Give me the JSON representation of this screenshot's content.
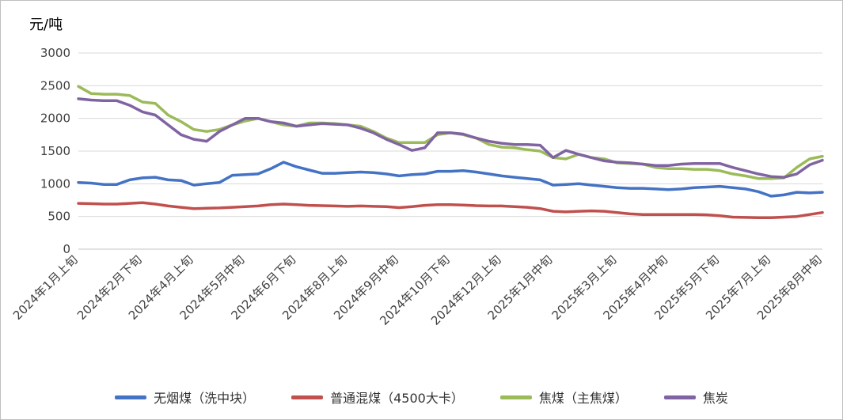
{
  "chart_data": {
    "type": "line",
    "title": "",
    "xlabel": "",
    "ylabel": "元/吨",
    "ylim": [
      0,
      3000
    ],
    "ytick_step": 500,
    "grid": true,
    "legend_position": "bottom",
    "tick_indices": [
      0,
      5,
      9,
      13,
      17,
      21,
      25,
      29,
      33,
      37,
      42,
      46,
      50,
      54,
      58
    ],
    "categories": [
      "2024年1月上旬",
      "2024年1月中旬",
      "2024年1月下旬",
      "2024年2月上旬",
      "2024年2月中旬",
      "2024年2月下旬",
      "2024年3月上旬",
      "2024年3月中旬",
      "2024年3月下旬",
      "2024年4月上旬",
      "2024年4月中旬",
      "2024年4月下旬",
      "2024年5月上旬",
      "2024年5月中旬",
      "2024年5月下旬",
      "2024年6月上旬",
      "2024年6月中旬",
      "2024年6月下旬",
      "2024年7月上旬",
      "2024年7月中旬",
      "2024年7月下旬",
      "2024年8月上旬",
      "2024年8月中旬",
      "2024年8月下旬",
      "2024年9月上旬",
      "2024年9月中旬",
      "2024年9月下旬",
      "2024年10月上旬",
      "2024年10月中旬",
      "2024年10月下旬",
      "2024年11月上旬",
      "2024年11月中旬",
      "2024年11月下旬",
      "2024年12月上旬",
      "2024年12月中旬",
      "2024年12月下旬",
      "2025年1月上旬",
      "2025年1月中旬",
      "2025年1月下旬",
      "2025年2月上旬",
      "2025年2月中旬",
      "2025年2月下旬",
      "2025年3月上旬",
      "2025年3月中旬",
      "2025年3月下旬",
      "2025年4月上旬",
      "2025年4月中旬",
      "2025年4月下旬",
      "2025年5月上旬",
      "2025年5月中旬",
      "2025年5月下旬",
      "2025年6月上旬",
      "2025年6月中旬",
      "2025年6月下旬",
      "2025年7月上旬",
      "2025年7月中旬",
      "2025年7月下旬",
      "2025年8月上旬",
      "2025年8月中旬"
    ],
    "series": [
      {
        "name": "无烟煤（洗中块）",
        "color": "#4472C4",
        "values": [
          1020,
          1010,
          990,
          990,
          1060,
          1090,
          1100,
          1060,
          1050,
          980,
          1000,
          1020,
          1130,
          1140,
          1150,
          1230,
          1330,
          1260,
          1210,
          1160,
          1160,
          1170,
          1180,
          1170,
          1150,
          1120,
          1140,
          1150,
          1190,
          1190,
          1200,
          1180,
          1150,
          1120,
          1100,
          1080,
          1060,
          980,
          990,
          1000,
          980,
          960,
          940,
          930,
          930,
          920,
          910,
          920,
          940,
          950,
          960,
          940,
          920,
          880,
          810,
          830,
          870,
          860,
          870
        ]
      },
      {
        "name": "普通混煤（4500大卡）",
        "color": "#C0504D",
        "values": [
          700,
          695,
          690,
          690,
          700,
          710,
          690,
          660,
          640,
          620,
          625,
          630,
          640,
          650,
          660,
          680,
          690,
          680,
          670,
          665,
          660,
          655,
          660,
          655,
          650,
          635,
          650,
          670,
          680,
          680,
          675,
          665,
          660,
          660,
          650,
          640,
          620,
          580,
          570,
          580,
          585,
          580,
          560,
          540,
          530,
          530,
          530,
          530,
          530,
          525,
          510,
          490,
          485,
          480,
          480,
          490,
          500,
          530,
          560
        ]
      },
      {
        "name": "焦煤（主焦煤）",
        "color": "#9BBB59",
        "values": [
          2490,
          2380,
          2370,
          2370,
          2350,
          2250,
          2230,
          2050,
          1950,
          1830,
          1800,
          1830,
          1900,
          1960,
          2000,
          1950,
          1900,
          1880,
          1930,
          1930,
          1920,
          1900,
          1880,
          1800,
          1700,
          1630,
          1630,
          1630,
          1750,
          1780,
          1750,
          1700,
          1600,
          1560,
          1550,
          1520,
          1500,
          1400,
          1380,
          1450,
          1400,
          1380,
          1320,
          1310,
          1300,
          1250,
          1230,
          1230,
          1220,
          1220,
          1200,
          1150,
          1120,
          1080,
          1080,
          1090,
          1250,
          1380,
          1420
        ]
      },
      {
        "name": "焦炭",
        "color": "#8064A2",
        "values": [
          2300,
          2280,
          2270,
          2270,
          2200,
          2100,
          2050,
          1900,
          1750,
          1680,
          1650,
          1800,
          1900,
          2000,
          2000,
          1950,
          1930,
          1880,
          1900,
          1920,
          1910,
          1900,
          1850,
          1780,
          1680,
          1600,
          1510,
          1550,
          1780,
          1780,
          1760,
          1700,
          1650,
          1620,
          1600,
          1600,
          1590,
          1400,
          1510,
          1450,
          1400,
          1350,
          1330,
          1320,
          1300,
          1280,
          1280,
          1300,
          1310,
          1310,
          1310,
          1250,
          1200,
          1150,
          1110,
          1100,
          1150,
          1290,
          1360
        ]
      }
    ]
  }
}
